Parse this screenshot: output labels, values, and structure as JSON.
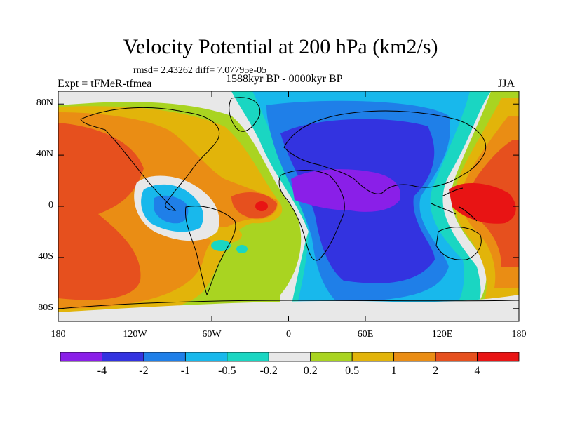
{
  "title": "Velocity Potential at 200 hPa (km2/s)",
  "stats": "rmsd= 2.43262  diff= 7.07795e-05",
  "experiment": "Expt = tFMeR-tfmea",
  "period": "1588kyr BP - 0000kyr BP",
  "season": "JJA",
  "colors": {
    "c_lt_m4": "#8a1fe8",
    "c_m4_m2": "#3333e0",
    "c_m2_m1": "#1f7fe8",
    "c_m1_m05": "#18b8ec",
    "c_m05_m02": "#1ad6c2",
    "c_m02_02": "#e8e8e8",
    "c_02_05": "#a9d421",
    "c_05_1": "#e2b40a",
    "c_1_2": "#ea8d14",
    "c_2_4": "#e6501e",
    "c_gt_4": "#e81414"
  },
  "chart_data": {
    "type": "heatmap",
    "map_projection": "cylindrical-equidistant",
    "lon_range": [
      -180,
      180
    ],
    "lat_range": [
      -90,
      90
    ],
    "x_ticks": [
      {
        "lon": -180,
        "label": "180"
      },
      {
        "lon": -120,
        "label": "120W"
      },
      {
        "lon": -60,
        "label": "60W"
      },
      {
        "lon": 0,
        "label": "0"
      },
      {
        "lon": 60,
        "label": "60E"
      },
      {
        "lon": 120,
        "label": "120E"
      },
      {
        "lon": 180,
        "label": "180"
      }
    ],
    "y_ticks": [
      {
        "lat": 80,
        "label": "80N"
      },
      {
        "lat": 40,
        "label": "40N"
      },
      {
        "lat": 0,
        "label": "0"
      },
      {
        "lat": -40,
        "label": "40S"
      },
      {
        "lat": -80,
        "label": "80S"
      }
    ],
    "colorbar": {
      "levels": [
        -4,
        -2,
        -1,
        -0.5,
        -0.2,
        0.2,
        0.5,
        1,
        2,
        4
      ],
      "labels": [
        "-4",
        "-2",
        "-1",
        "-0.5",
        "-0.2",
        "0.2",
        "0.5",
        "1",
        "2",
        "4"
      ]
    },
    "features": [
      {
        "lon": -140,
        "lat": 10,
        "value": 2.5
      },
      {
        "lon": -160,
        "lat": -40,
        "value": 3
      },
      {
        "lon": -90,
        "lat": 0,
        "value": -2
      },
      {
        "lon": -20,
        "lat": 0,
        "value": 4.5
      },
      {
        "lon": 50,
        "lat": 15,
        "value": -4.5
      },
      {
        "lon": 60,
        "lat": -10,
        "value": -3
      },
      {
        "lon": 160,
        "lat": 0,
        "value": 3
      },
      {
        "lon": 150,
        "lat": -40,
        "value": 1.5
      },
      {
        "lon": 100,
        "lat": -60,
        "value": -0.8
      },
      {
        "lon": -30,
        "lat": 70,
        "value": -0.6
      }
    ]
  }
}
